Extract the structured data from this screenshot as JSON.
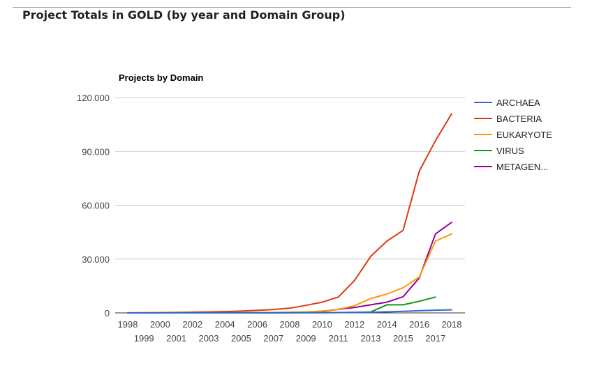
{
  "page": {
    "title": "Project Totals in GOLD (by year and Domain Group)"
  },
  "chart_data": {
    "type": "line",
    "title": "Projects by Domain",
    "xlabel": "",
    "ylabel": "",
    "ylim": [
      0,
      120000
    ],
    "yticks": [
      {
        "value": 0,
        "label": "0"
      },
      {
        "value": 30000,
        "label": "30.000"
      },
      {
        "value": 60000,
        "label": "60.000"
      },
      {
        "value": 90000,
        "label": "90.000"
      },
      {
        "value": 120000,
        "label": "120.000"
      }
    ],
    "x": [
      1998,
      1999,
      2000,
      2001,
      2002,
      2003,
      2004,
      2005,
      2006,
      2007,
      2008,
      2009,
      2010,
      2011,
      2012,
      2013,
      2014,
      2015,
      2016,
      2017,
      2018
    ],
    "xtick_labels": [
      "1998",
      "1999",
      "2000",
      "2001",
      "2002",
      "2003",
      "2004",
      "2005",
      "2006",
      "2007",
      "2008",
      "2009",
      "2010",
      "2011",
      "2012",
      "2013",
      "2014",
      "2015",
      "2016",
      "2017",
      "2018"
    ],
    "grid": true,
    "legend_position": "right",
    "series": [
      {
        "name": "ARCHAEA",
        "color": "#3366cc",
        "values": [
          0,
          5,
          10,
          20,
          30,
          40,
          50,
          60,
          70,
          80,
          100,
          120,
          150,
          180,
          250,
          350,
          600,
          900,
          1200,
          1500,
          1700
        ]
      },
      {
        "name": "BACTERIA",
        "color": "#dc3912",
        "values": [
          50,
          80,
          150,
          250,
          400,
          550,
          750,
          1000,
          1400,
          1900,
          2600,
          4200,
          6000,
          8800,
          18000,
          31500,
          40000,
          46000,
          79000,
          96000,
          111000
        ]
      },
      {
        "name": "EUKARYOTE",
        "color": "#ff9900",
        "values": [
          0,
          5,
          10,
          20,
          40,
          60,
          80,
          100,
          150,
          250,
          400,
          600,
          1000,
          2000,
          4000,
          8000,
          10500,
          14000,
          20000,
          40000,
          44000
        ]
      },
      {
        "name": "VIRUS",
        "color": "#109618",
        "values": [
          0,
          0,
          0,
          0,
          0,
          0,
          0,
          10,
          20,
          30,
          40,
          60,
          80,
          150,
          300,
          500,
          4500,
          4500,
          6500,
          8800,
          null
        ]
      },
      {
        "name": "METAGEN...",
        "color": "#990099",
        "values": [
          0,
          0,
          0,
          0,
          0,
          0,
          0,
          0,
          0,
          20,
          100,
          300,
          800,
          2000,
          3000,
          4500,
          6000,
          9000,
          19500,
          44000,
          50500
        ]
      }
    ]
  }
}
